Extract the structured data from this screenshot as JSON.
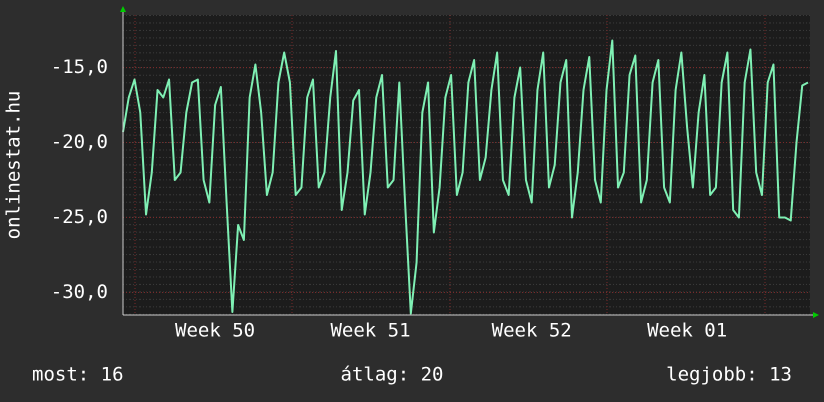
{
  "chart_data": {
    "type": "line",
    "y_label": "onlinestat.hu",
    "categories": [
      null,
      null,
      null,
      null,
      null,
      null,
      null,
      null,
      null,
      null,
      null,
      null,
      null,
      null,
      null,
      null,
      "Week 50",
      null,
      null,
      null,
      null,
      null,
      null,
      null,
      null,
      null,
      null,
      null,
      null,
      null,
      null,
      null,
      null,
      null,
      null,
      null,
      null,
      null,
      null,
      null,
      null,
      null,
      null,
      "Week 51",
      null,
      null,
      null,
      null,
      null,
      null,
      null,
      null,
      null,
      null,
      null,
      null,
      null,
      null,
      null,
      null,
      null,
      null,
      null,
      null,
      null,
      null,
      null,
      null,
      null,
      null,
      null,
      "Week 52",
      null,
      null,
      null,
      null,
      null,
      null,
      null,
      null,
      null,
      null,
      null,
      null,
      null,
      null,
      null,
      null,
      null,
      null,
      null,
      null,
      null,
      null,
      null,
      null,
      null,
      null,
      "Week 01",
      null,
      null,
      null,
      null,
      null,
      null,
      null,
      null,
      null,
      null,
      null,
      null,
      null,
      null,
      null,
      null,
      null,
      null,
      null,
      null,
      null
    ],
    "series": [
      {
        "color": "#7ff0b4",
        "values": [
          -19.3,
          -17.0,
          -15.8,
          -18.0,
          -24.8,
          -22.0,
          -16.5,
          -17.0,
          -15.8,
          -22.5,
          -22.0,
          -18.0,
          -16.0,
          -15.8,
          -22.5,
          -24.0,
          -17.5,
          -16.3,
          -24.0,
          -31.3,
          -25.5,
          -26.5,
          -17.0,
          -14.8,
          -18.0,
          -23.5,
          -22.0,
          -16.0,
          -14.0,
          -16.0,
          -23.5,
          -23.0,
          -17.0,
          -15.8,
          -23.0,
          -22.0,
          -17.0,
          -13.9,
          -24.5,
          -22.0,
          -17.2,
          -16.5,
          -24.8,
          -22.0,
          -17.0,
          -15.5,
          -23.0,
          -22.5,
          -16.0,
          -24.0,
          -31.4,
          -28.0,
          -18.0,
          -16.0,
          -26.0,
          -23.0,
          -17.0,
          -15.5,
          -23.5,
          -22.0,
          -16.0,
          -14.5,
          -22.5,
          -21.0,
          -16.5,
          -14.0,
          -22.5,
          -23.5,
          -17.0,
          -15.0,
          -22.5,
          -24.0,
          -16.5,
          -14.0,
          -23.0,
          -21.5,
          -16.0,
          -14.5,
          -25.0,
          -22.0,
          -16.5,
          -14.3,
          -22.5,
          -24.0,
          -16.5,
          -13.2,
          -23.0,
          -22.0,
          -15.5,
          -14.2,
          -24.0,
          -22.5,
          -16.0,
          -14.5,
          -23.0,
          -24.0,
          -16.5,
          -14.0,
          -19.0,
          -23.0,
          -18.0,
          -15.5,
          -23.5,
          -23.0,
          -16.0,
          -14.0,
          -24.5,
          -25.0,
          -16.0,
          -13.8,
          -22.0,
          -23.5,
          -16.0,
          -14.8,
          -25.0,
          -25.0,
          -25.2,
          -20.0,
          -16.2,
          -16.0
        ]
      }
    ],
    "ylim": [
      -31.5,
      -11.5
    ],
    "yticks": [
      {
        "value": -30,
        "label": "-30,0"
      },
      {
        "value": -25,
        "label": "-25,0"
      },
      {
        "value": -20,
        "label": "-20,0"
      },
      {
        "value": -15,
        "label": "-15,0"
      }
    ],
    "grid": true
  },
  "footer": {
    "current": "most: 16",
    "average": "átlag: 20",
    "best": "legjobb: 13"
  }
}
